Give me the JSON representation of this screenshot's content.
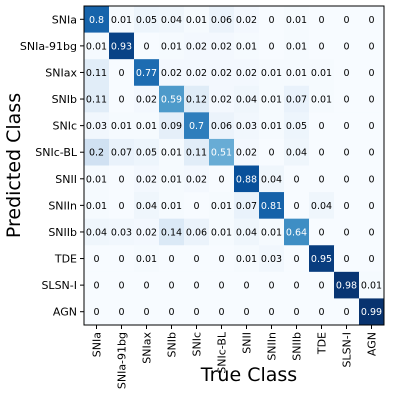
{
  "chart_data": {
    "type": "heatmap",
    "xlabel": "True Class",
    "ylabel": "Predicted Class",
    "classes": [
      "SNIa",
      "SNIa-91bg",
      "SNIax",
      "SNIb",
      "SNIc",
      "SNIc-BL",
      "SNII",
      "SNIIn",
      "SNIIb",
      "TDE",
      "SLSN-I",
      "AGN"
    ],
    "matrix": [
      [
        "0.8",
        "0.01",
        "0.05",
        "0.04",
        "0.01",
        "0.06",
        "0.02",
        "0",
        "0.01",
        "0",
        "0",
        "0"
      ],
      [
        "0.01",
        "0.93",
        "0",
        "0.01",
        "0.02",
        "0.02",
        "0.01",
        "0",
        "0.01",
        "0",
        "0",
        "0"
      ],
      [
        "0.11",
        "0",
        "0.77",
        "0.02",
        "0.02",
        "0.02",
        "0.02",
        "0.01",
        "0.01",
        "0.01",
        "0",
        "0"
      ],
      [
        "0.11",
        "0",
        "0.02",
        "0.59",
        "0.12",
        "0.02",
        "0.04",
        "0.01",
        "0.07",
        "0.01",
        "0",
        "0"
      ],
      [
        "0.03",
        "0.01",
        "0.01",
        "0.09",
        "0.7",
        "0.06",
        "0.03",
        "0.01",
        "0.05",
        "0",
        "0",
        "0"
      ],
      [
        "0.2",
        "0.07",
        "0.05",
        "0.01",
        "0.11",
        "0.51",
        "0.02",
        "0",
        "0.04",
        "0",
        "0",
        "0"
      ],
      [
        "0.01",
        "0",
        "0.02",
        "0.01",
        "0.02",
        "0",
        "0.88",
        "0.04",
        "0",
        "0",
        "0",
        "0"
      ],
      [
        "0.01",
        "0",
        "0.04",
        "0.01",
        "0",
        "0.01",
        "0.07",
        "0.81",
        "0",
        "0.04",
        "0",
        "0"
      ],
      [
        "0.04",
        "0.03",
        "0.02",
        "0.14",
        "0.06",
        "0.01",
        "0.04",
        "0.01",
        "0.64",
        "0",
        "0",
        "0"
      ],
      [
        "0",
        "0",
        "0.01",
        "0",
        "0",
        "0",
        "0.01",
        "0.03",
        "0",
        "0.95",
        "0",
        "0"
      ],
      [
        "0",
        "0",
        "0",
        "0",
        "0",
        "0",
        "0",
        "0",
        "0",
        "0",
        "0.98",
        "0.01"
      ],
      [
        "0",
        "0",
        "0",
        "0",
        "0",
        "0",
        "0",
        "0",
        "0",
        "0",
        "0",
        "0.99"
      ]
    ],
    "colormap": "Blues",
    "value_range": [
      0,
      1
    ],
    "colors": {
      "low": "#f7fbff",
      "high": "#08306b",
      "text_dark": "#000000",
      "text_light": "#ffffff"
    }
  }
}
